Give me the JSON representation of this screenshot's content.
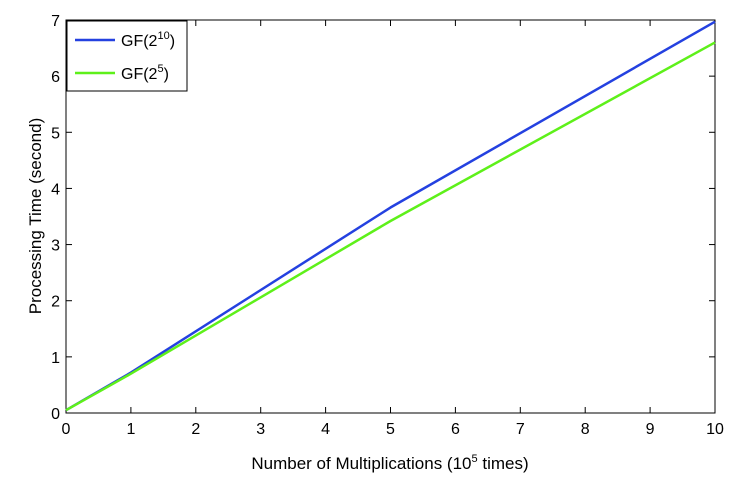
{
  "chart_data": {
    "type": "line",
    "xlabel": {
      "prefix": "Number of Multiplications (10",
      "sup": "5",
      "suffix": " times)"
    },
    "ylabel": "Processing Time (second)",
    "xlim": [
      0,
      10
    ],
    "ylim": [
      0,
      7
    ],
    "x_ticks": [
      "0",
      "1",
      "2",
      "3",
      "4",
      "5",
      "6",
      "7",
      "8",
      "9",
      "10"
    ],
    "y_ticks": [
      "0",
      "1",
      "2",
      "3",
      "4",
      "5",
      "6",
      "7"
    ],
    "grid": false,
    "legend_position": "top-left",
    "series": [
      {
        "name_base": "GF(2",
        "name_sup": "10",
        "name_close": ")",
        "color": "#2441e0",
        "x": [
          0,
          1,
          5,
          10
        ],
        "y": [
          0.05,
          0.72,
          3.66,
          6.97
        ]
      },
      {
        "name_base": "GF(2",
        "name_sup": "5",
        "name_close": ")",
        "color": "#5ef01a",
        "x": [
          0,
          1,
          5,
          10
        ],
        "y": [
          0.05,
          0.7,
          3.42,
          6.6
        ]
      }
    ]
  }
}
